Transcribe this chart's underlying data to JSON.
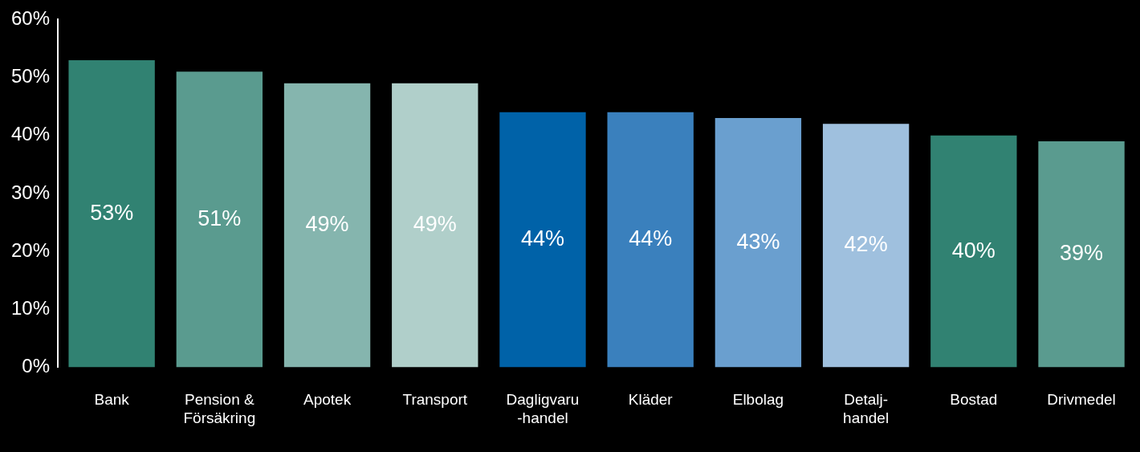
{
  "chart_data": {
    "type": "bar",
    "categories": [
      "Bank",
      "Pension &\nFörsäkring",
      "Apotek",
      "Transport",
      "Dagligvaru\n-handel",
      "Kläder",
      "Elbolag",
      "Detalj-\nhandel",
      "Bostad",
      "Drivmedel"
    ],
    "values": [
      53,
      51,
      49,
      49,
      44,
      44,
      43,
      42,
      40,
      39
    ],
    "colors": [
      "#318272",
      "#5a9b8f",
      "#85b5ae",
      "#b0cfca",
      "#0062a8",
      "#3a80bd",
      "#6a9fcf",
      "#9fc0de",
      "#318272",
      "#5a9b8f"
    ],
    "value_labels": [
      "53%",
      "51%",
      "49%",
      "49%",
      "44%",
      "44%",
      "43%",
      "42%",
      "40%",
      "39%"
    ],
    "ylim": [
      0,
      60
    ],
    "yticks": [
      {
        "value": 0,
        "label": "0%"
      },
      {
        "value": 10,
        "label": "10%"
      },
      {
        "value": 20,
        "label": "20%"
      },
      {
        "value": 30,
        "label": "30%"
      },
      {
        "value": 40,
        "label": "40%"
      },
      {
        "value": 50,
        "label": "50%"
      },
      {
        "value": 60,
        "label": "60%"
      }
    ],
    "grid": false,
    "legend": false
  }
}
